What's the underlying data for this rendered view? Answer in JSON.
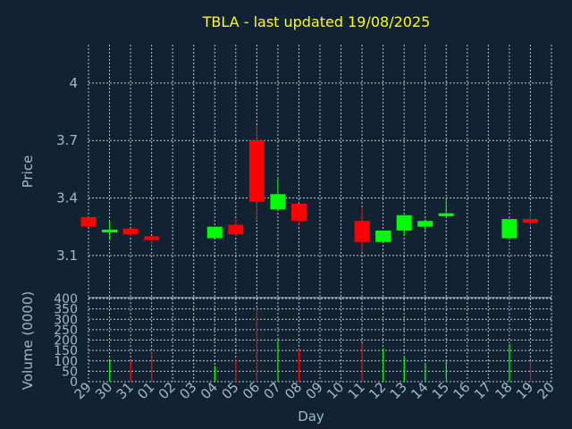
{
  "title": "TBLA - last updated 19/08/2025",
  "colors": {
    "background": "#112233",
    "up": "#00ff00",
    "down": "#ff0000",
    "title": "#ffff00",
    "text": "#a3b8cc",
    "grid": "#ffffff"
  },
  "chart_data": [
    {
      "type": "candlestick",
      "ylabel": "Price",
      "ylim": [
        2.88,
        4.2
      ],
      "yticks": [
        "3.1",
        "3.4",
        "3.7",
        "4"
      ],
      "grid": true,
      "x_days": [
        "29",
        "30",
        "31",
        "01",
        "02",
        "03",
        "04",
        "05",
        "06",
        "07",
        "08",
        "09",
        "10",
        "11",
        "12",
        "13",
        "14",
        "15",
        "16",
        "17",
        "18",
        "19",
        "20"
      ],
      "candles": [
        {
          "day": "29",
          "open": 3.3,
          "close": 3.25,
          "high": 3.3,
          "low": 3.25
        },
        {
          "day": "30",
          "open": 3.22,
          "close": 3.235,
          "high": 3.28,
          "low": 3.18
        },
        {
          "day": "31",
          "open": 3.24,
          "close": 3.21,
          "high": 3.24,
          "low": 3.2
        },
        {
          "day": "01",
          "open": 3.2,
          "close": 3.18,
          "high": 3.2,
          "low": 3.15
        },
        {
          "day": "04",
          "open": 3.19,
          "close": 3.25,
          "high": 3.25,
          "low": 3.19
        },
        {
          "day": "05",
          "open": 3.26,
          "close": 3.21,
          "high": 3.29,
          "low": 3.2
        },
        {
          "day": "06",
          "open": 3.7,
          "close": 3.38,
          "high": 3.78,
          "low": 3.28
        },
        {
          "day": "07",
          "open": 3.34,
          "close": 3.42,
          "high": 3.51,
          "low": 3.34
        },
        {
          "day": "08",
          "open": 3.37,
          "close": 3.28,
          "high": 3.37,
          "low": 3.26
        },
        {
          "day": "11",
          "open": 3.28,
          "close": 3.17,
          "high": 3.35,
          "low": 3.12
        },
        {
          "day": "12",
          "open": 3.17,
          "close": 3.23,
          "high": 3.23,
          "low": 3.17
        },
        {
          "day": "13",
          "open": 3.23,
          "close": 3.31,
          "high": 3.31,
          "low": 3.2
        },
        {
          "day": "14",
          "open": 3.25,
          "close": 3.28,
          "high": 3.29,
          "low": 3.23
        },
        {
          "day": "15",
          "open": 3.305,
          "close": 3.32,
          "high": 3.4,
          "low": 3.3
        },
        {
          "day": "18",
          "open": 3.19,
          "close": 3.29,
          "high": 3.29,
          "low": 3.19
        },
        {
          "day": "19",
          "open": 3.29,
          "close": 3.27,
          "high": 3.33,
          "low": 3.25
        }
      ]
    },
    {
      "type": "bar",
      "ylabel": "Volume (0000)",
      "xlabel": "Day",
      "ylim": [
        0,
        400
      ],
      "yticks": [
        "0",
        "50",
        "100",
        "150",
        "200",
        "250",
        "300",
        "350",
        "400"
      ],
      "grid": true,
      "values": [
        {
          "day": "30",
          "volume": 100,
          "direction": "up"
        },
        {
          "day": "31",
          "volume": 100,
          "direction": "down"
        },
        {
          "day": "01",
          "volume": 140,
          "direction": "down"
        },
        {
          "day": "04",
          "volume": 75,
          "direction": "up"
        },
        {
          "day": "05",
          "volume": 110,
          "direction": "down"
        },
        {
          "day": "06",
          "volume": 350,
          "direction": "down"
        },
        {
          "day": "07",
          "volume": 200,
          "direction": "up"
        },
        {
          "day": "08",
          "volume": 155,
          "direction": "down"
        },
        {
          "day": "11",
          "volume": 185,
          "direction": "down"
        },
        {
          "day": "12",
          "volume": 160,
          "direction": "up"
        },
        {
          "day": "13",
          "volume": 115,
          "direction": "up"
        },
        {
          "day": "14",
          "volume": 90,
          "direction": "up"
        },
        {
          "day": "15",
          "volume": 105,
          "direction": "up"
        },
        {
          "day": "18",
          "volume": 180,
          "direction": "up"
        },
        {
          "day": "19",
          "volume": 100,
          "direction": "down"
        }
      ]
    }
  ]
}
